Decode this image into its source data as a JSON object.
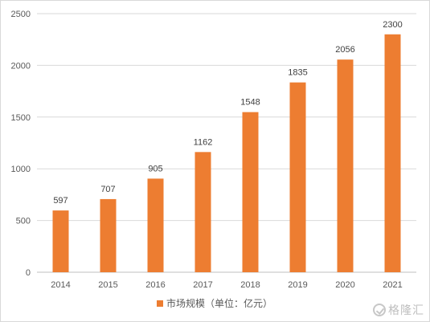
{
  "chart_data": {
    "type": "bar",
    "categories": [
      "2014",
      "2015",
      "2016",
      "2017",
      "2018",
      "2019",
      "2020",
      "2021"
    ],
    "series": [
      {
        "name": "市场规模（单位：亿元）",
        "values": [
          597,
          707,
          905,
          1162,
          1548,
          1835,
          2056,
          2300
        ],
        "color": "#ED7D31"
      }
    ],
    "ylim": [
      0,
      2500
    ],
    "yticks": [
      0,
      500,
      1000,
      1500,
      2000,
      2500
    ],
    "grid": true,
    "legend_position": "bottom",
    "data_labels": true
  },
  "watermark": {
    "text": "格隆汇",
    "icon": "g-logo-icon"
  }
}
